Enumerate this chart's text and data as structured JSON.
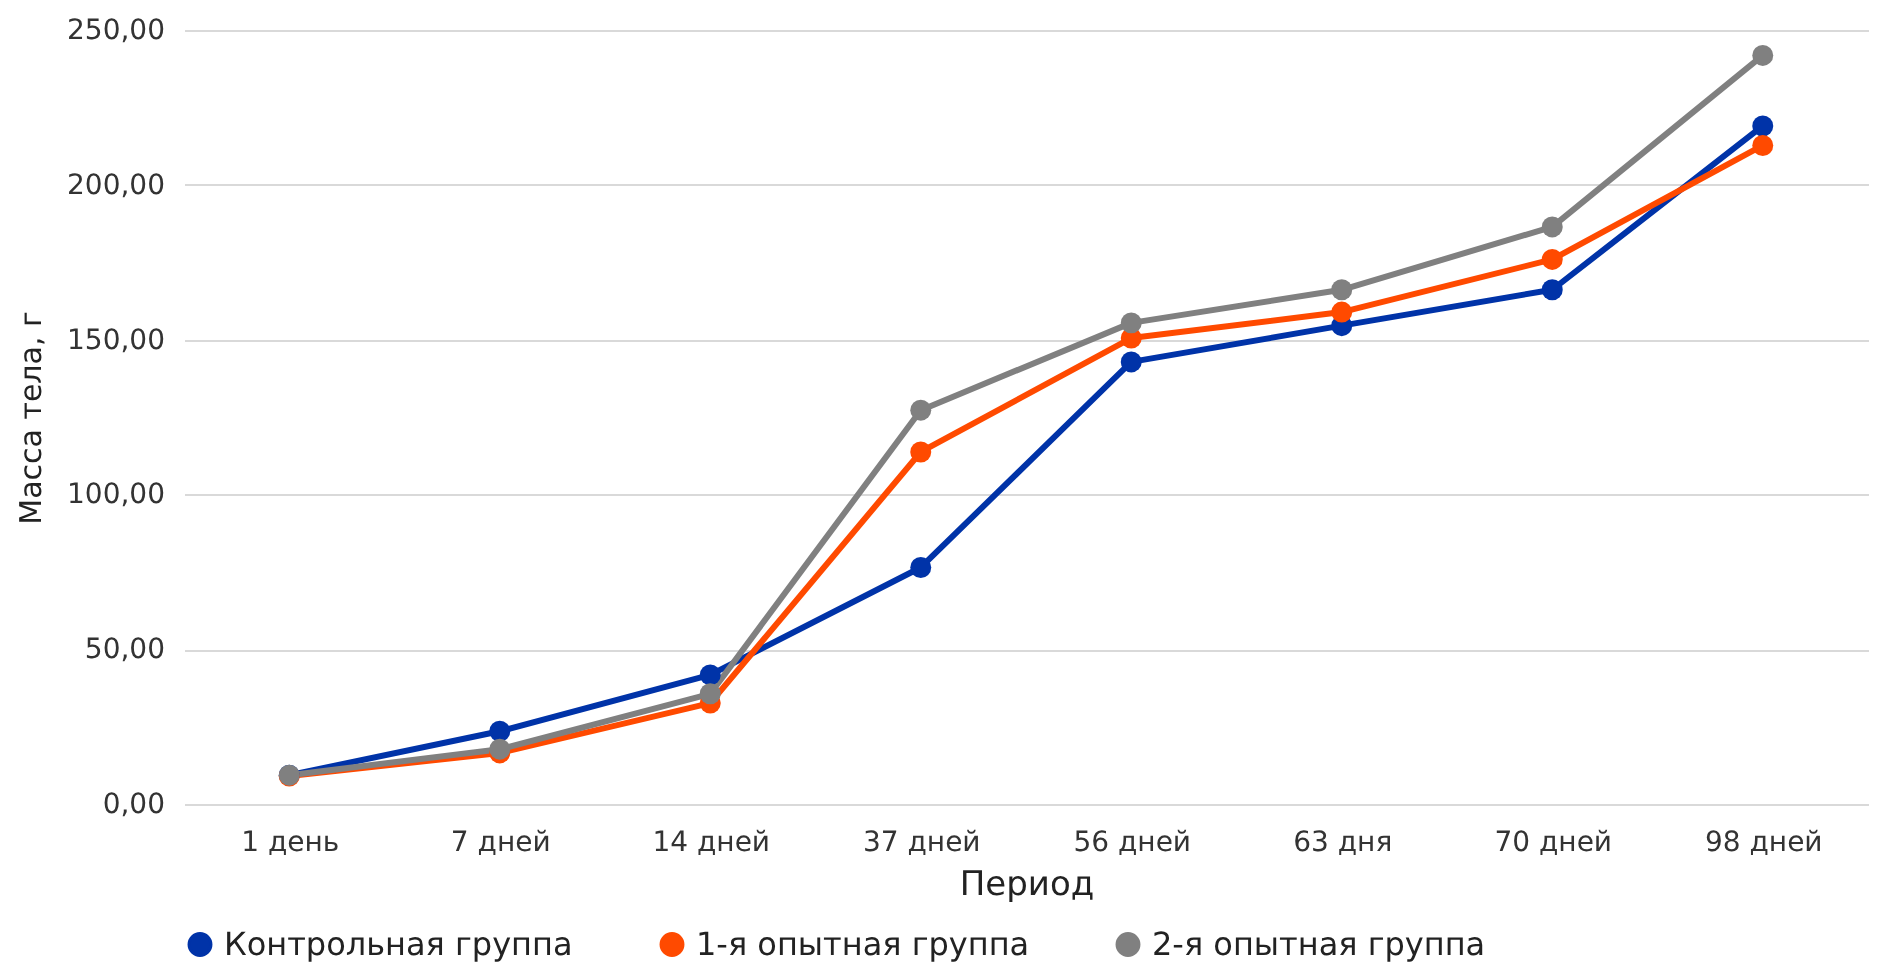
{
  "chart_data": {
    "type": "line",
    "xlabel": "Период",
    "ylabel": "Масса тела, г",
    "categories": [
      "1 день",
      "7 дней",
      "14 дней",
      "37 дней",
      "56 дней",
      "63 дня",
      "70 дней",
      "98 дней"
    ],
    "series": [
      {
        "name": "Контрольная группа",
        "color": "#0033a8",
        "values": [
          9.3,
          23.5,
          41.7,
          76.4,
          142.8,
          154.5,
          166.1,
          219.0
        ]
      },
      {
        "name": "1-я опытная группа",
        "color": "#ff4a00",
        "values": [
          9.0,
          16.5,
          32.6,
          113.7,
          150.5,
          158.9,
          175.9,
          212.7
        ]
      },
      {
        "name": "2-я опытная группа",
        "color": "#808080",
        "values": [
          9.3,
          17.7,
          35.6,
          127.2,
          155.4,
          166.1,
          186.4,
          241.8
        ]
      }
    ],
    "ylim": [
      0,
      250
    ],
    "yticks": [
      {
        "value": 0,
        "label": "0,00"
      },
      {
        "value": 50,
        "label": "50,00"
      },
      {
        "value": 100,
        "label": "100,00"
      },
      {
        "value": 150,
        "label": "150,00"
      },
      {
        "value": 200,
        "label": "200,00"
      },
      {
        "value": 250,
        "label": "250,00"
      }
    ],
    "grid": "y",
    "legend": "bottom",
    "marker": "circle",
    "line_style": "solid"
  }
}
